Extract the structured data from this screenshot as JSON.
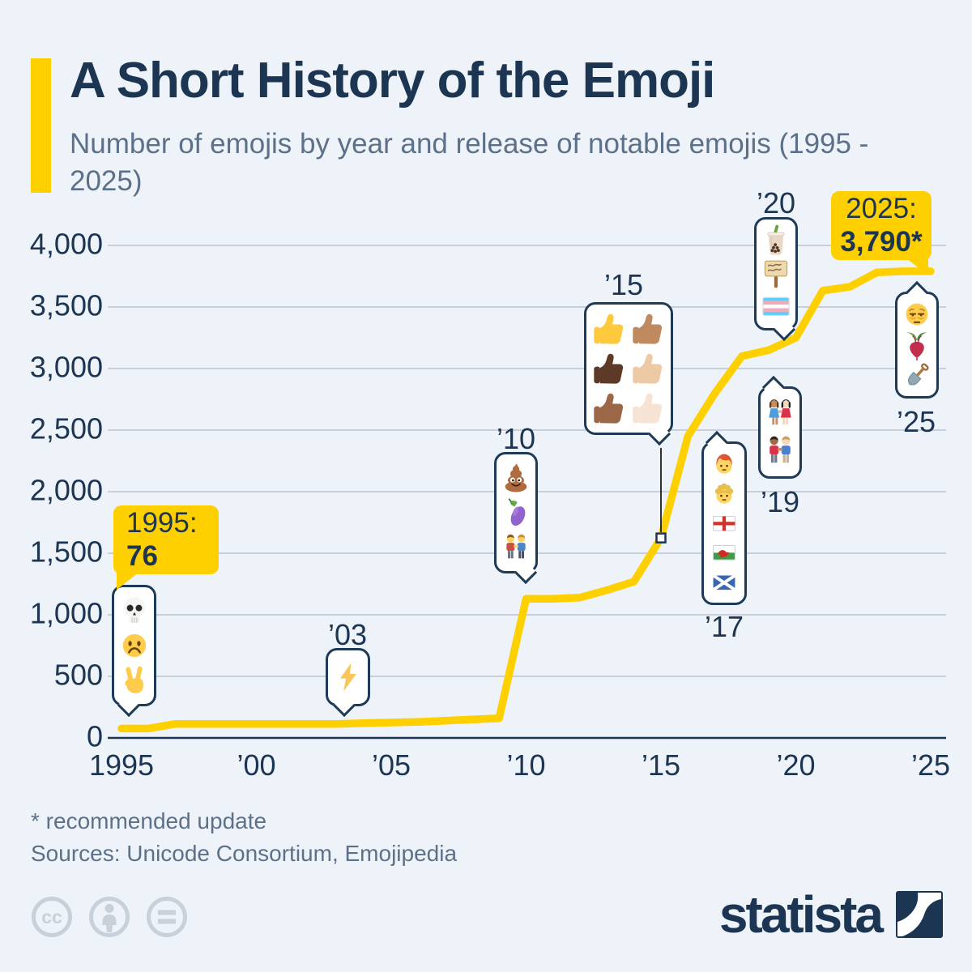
{
  "header": {
    "title": "A Short History of the Emoji",
    "subtitle": "Number of emojis by year and release of notable emojis (1995 - 2025)"
  },
  "chart_data": {
    "type": "line",
    "title": "Number of emojis by year (1995-2025)",
    "series_name": "Number of emojis",
    "x": [
      1995,
      1996,
      1997,
      1998,
      1999,
      2000,
      2001,
      2002,
      2003,
      2004,
      2005,
      2006,
      2007,
      2008,
      2009,
      2010,
      2011,
      2012,
      2013,
      2014,
      2015,
      2016,
      2017,
      2018,
      2019,
      2020,
      2021,
      2022,
      2023,
      2024,
      2025
    ],
    "values": [
      76,
      76,
      114,
      114,
      114,
      114,
      114,
      114,
      114,
      120,
      125,
      130,
      140,
      150,
      160,
      1130,
      1130,
      1140,
      1200,
      1270,
      1624,
      2450,
      2800,
      3100,
      3150,
      3250,
      3633,
      3664,
      3780,
      3790,
      3790
    ],
    "ylim": [
      0,
      4000
    ],
    "yticks": [
      0,
      500,
      1000,
      1500,
      2000,
      2500,
      3000,
      3500,
      4000
    ],
    "ytick_labels": [
      "0",
      "500",
      "1,000",
      "1,500",
      "2,000",
      "2,500",
      "3,000",
      "3,500",
      "4,000"
    ],
    "xticks": [
      1995,
      2000,
      2005,
      2010,
      2015,
      2020,
      2025
    ],
    "xtick_labels": [
      "1995",
      "’00",
      "’05",
      "’10",
      "’15",
      "’20",
      "’25"
    ],
    "grid": "horizontal",
    "legend": "none",
    "line_color": "#ffd000",
    "marker": {
      "year": 2015,
      "value": 1624
    }
  },
  "annotations": {
    "start_label": {
      "line1": "1995:",
      "line2": "76"
    },
    "end_label": {
      "line1": "2025:",
      "line2": "3,790*"
    },
    "callouts": [
      {
        "id": "1995",
        "year_label": "",
        "icons": [
          "skull",
          "frowning-face",
          "victory-hand"
        ]
      },
      {
        "id": "2003",
        "year_label": "’03",
        "icons": [
          "high-voltage"
        ]
      },
      {
        "id": "2010",
        "year_label": "’10",
        "icons": [
          "pile-of-poo",
          "eggplant",
          "men-holding-hands"
        ]
      },
      {
        "id": "2015",
        "year_label": "’15",
        "icons": [
          "thumbs-up:default",
          "thumbs-up:medium",
          "thumbs-up:dark",
          "thumbs-up:medium_light",
          "thumbs-up:medium_dark",
          "thumbs-up:light"
        ]
      },
      {
        "id": "2017",
        "year_label": "’17",
        "icons": [
          "person-red-hair",
          "person-curly-hair",
          "flag-england",
          "flag-wales",
          "flag-scotland"
        ]
      },
      {
        "id": "2019",
        "year_label": "’19",
        "icons": [
          "women-holding-hands",
          "men-holding-hands-skin-tones"
        ]
      },
      {
        "id": "2020",
        "year_label": "’20",
        "icons": [
          "bubble-tea",
          "placard",
          "transgender-flag"
        ]
      },
      {
        "id": "2025",
        "year_label": "’25",
        "icons": [
          "face-bags-under-eyes",
          "beetroot",
          "shovel"
        ]
      }
    ]
  },
  "skin_tones": {
    "default": "#ffc93d",
    "medium": "#bf8a60",
    "dark": "#5c3a27",
    "medium_light": "#eec9a6",
    "medium_dark": "#9c6746",
    "light": "#f7e3d3"
  },
  "footer": {
    "footnote": "* recommended update",
    "sources": "Sources: Unicode Consortium, Emojipedia"
  },
  "branding": {
    "logo_text": "statista",
    "license_icons": [
      "cc-icon",
      "attribution-icon",
      "equals-icon"
    ]
  },
  "colors": {
    "background": "#eef3f9",
    "navy": "#1c3552",
    "accent_yellow": "#ffd000",
    "grid": "#c9cfda",
    "muted_text": "#5c7089"
  }
}
